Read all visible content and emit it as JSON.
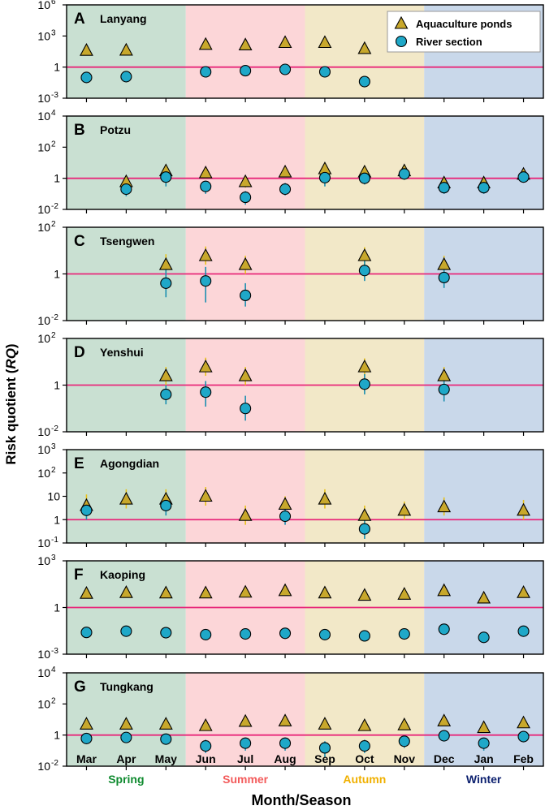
{
  "chart_data": {
    "type": "scatter",
    "y_axis_label_prefix": "Risk quotient (",
    "y_axis_label_italic": "RQ",
    "y_axis_label_suffix": ")",
    "x_axis_label": "Month/Season",
    "months": [
      "Mar",
      "Apr",
      "May",
      "Jun",
      "Jul",
      "Aug",
      "Sep",
      "Oct",
      "Nov",
      "Dec",
      "Jan",
      "Feb"
    ],
    "seasons": [
      {
        "name": "Spring",
        "color": "#0e8a2e",
        "band": "#c9e0d2"
      },
      {
        "name": "Summer",
        "color": "#f35b5b",
        "band": "#fcd6d8"
      },
      {
        "name": "Autumn",
        "color": "#f0b000",
        "band": "#f2e8c8"
      },
      {
        "name": "Winter",
        "color": "#0b1f6e",
        "band": "#c9d8ea"
      }
    ],
    "legend": [
      {
        "name": "Aquaculture ponds",
        "marker": "triangle",
        "color": "#c8a82c"
      },
      {
        "name": "River section",
        "marker": "circle",
        "color": "#1fa8c8"
      }
    ],
    "threshold": {
      "value": 1,
      "color": "#e8287a"
    },
    "panels": [
      {
        "letter": "A",
        "site": "Lanyang",
        "ylim_exp": [
          -3,
          6
        ],
        "ticks": [
          {
            "exp": -3,
            "label": "10",
            "sup": "-3"
          },
          {
            "exp": 0,
            "label": "1",
            "sup": ""
          },
          {
            "exp": 3,
            "label": "10",
            "sup": "3"
          },
          {
            "exp": 6,
            "label": "10",
            "sup": "6"
          }
        ],
        "ponds": [
          {
            "m": 0,
            "v": 40
          },
          {
            "m": 1,
            "v": 42
          },
          {
            "m": 3,
            "v": 150
          },
          {
            "m": 4,
            "v": 135
          },
          {
            "m": 5,
            "v": 230
          },
          {
            "m": 6,
            "v": 230
          },
          {
            "m": 7,
            "v": 60
          }
        ],
        "river": [
          {
            "m": 0,
            "v": 0.1
          },
          {
            "m": 1,
            "v": 0.12
          },
          {
            "m": 3,
            "v": 0.35
          },
          {
            "m": 4,
            "v": 0.45
          },
          {
            "m": 5,
            "v": 0.6
          },
          {
            "m": 6,
            "v": 0.35
          },
          {
            "m": 7,
            "v": 0.04
          }
        ]
      },
      {
        "letter": "B",
        "site": "Potzu",
        "ylim_exp": [
          -2,
          4
        ],
        "ticks": [
          {
            "exp": -2,
            "label": "10",
            "sup": "-2"
          },
          {
            "exp": 0,
            "label": "1",
            "sup": ""
          },
          {
            "exp": 2,
            "label": "10",
            "sup": "2"
          },
          {
            "exp": 4,
            "label": "10",
            "sup": "4"
          }
        ],
        "ponds": [
          {
            "m": 1,
            "v": 0.6,
            "lo": 0.3,
            "hi": 1.1
          },
          {
            "m": 2,
            "v": 3,
            "lo": 1.5,
            "hi": 7
          },
          {
            "m": 3,
            "v": 2.2,
            "lo": 1,
            "hi": 5
          },
          {
            "m": 4,
            "v": 0.6,
            "lo": 0.25,
            "hi": 1.3
          },
          {
            "m": 5,
            "v": 2.5,
            "lo": 1.2,
            "hi": 5
          },
          {
            "m": 6,
            "v": 4,
            "lo": 2,
            "hi": 10
          },
          {
            "m": 7,
            "v": 2.5,
            "lo": 1,
            "hi": 6
          },
          {
            "m": 8,
            "v": 3,
            "lo": 1.5,
            "hi": 7
          },
          {
            "m": 9,
            "v": 0.5,
            "lo": 0.3,
            "hi": 1
          },
          {
            "m": 10,
            "v": 0.5,
            "lo": 0.3,
            "hi": 0.9
          },
          {
            "m": 11,
            "v": 1.8,
            "lo": 1,
            "hi": 3
          }
        ],
        "river": [
          {
            "m": 1,
            "v": 0.2,
            "lo": 0.07,
            "hi": 0.5
          },
          {
            "m": 2,
            "v": 1.2,
            "lo": 0.3,
            "hi": 3
          },
          {
            "m": 3,
            "v": 0.3,
            "lo": 0.1,
            "hi": 0.7
          },
          {
            "m": 4,
            "v": 0.06,
            "lo": 0.02,
            "hi": 0.15
          },
          {
            "m": 5,
            "v": 0.2,
            "lo": 0.08,
            "hi": 0.5
          },
          {
            "m": 6,
            "v": 1.1,
            "lo": 0.3,
            "hi": 3
          },
          {
            "m": 7,
            "v": 1,
            "lo": 0.4,
            "hi": 2.5
          },
          {
            "m": 8,
            "v": 1.9,
            "lo": 0.8,
            "hi": 4
          },
          {
            "m": 9,
            "v": 0.25,
            "lo": 0.1,
            "hi": 0.5
          },
          {
            "m": 10,
            "v": 0.25,
            "lo": 0.1,
            "hi": 0.5
          },
          {
            "m": 11,
            "v": 1.2,
            "lo": 0.6,
            "hi": 2.5
          }
        ]
      },
      {
        "letter": "C",
        "site": "Tsengwen",
        "ylim_exp": [
          -2,
          2
        ],
        "ticks": [
          {
            "exp": -2,
            "label": "10",
            "sup": "-2"
          },
          {
            "exp": 0,
            "label": "1",
            "sup": ""
          },
          {
            "exp": 2,
            "label": "10",
            "sup": "2"
          }
        ],
        "ponds": [
          {
            "m": 2,
            "v": 2.5,
            "lo": 1,
            "hi": 7
          },
          {
            "m": 3,
            "v": 6,
            "lo": 2.5,
            "hi": 15
          },
          {
            "m": 4,
            "v": 2.5,
            "lo": 1,
            "hi": 6
          },
          {
            "m": 7,
            "v": 6,
            "lo": 2.5,
            "hi": 14
          },
          {
            "m": 9,
            "v": 2.5,
            "lo": 1,
            "hi": 6
          }
        ],
        "river": [
          {
            "m": 2,
            "v": 0.4,
            "lo": 0.1,
            "hi": 1.5
          },
          {
            "m": 3,
            "v": 0.5,
            "lo": 0.06,
            "hi": 2
          },
          {
            "m": 4,
            "v": 0.12,
            "lo": 0.04,
            "hi": 0.4
          },
          {
            "m": 7,
            "v": 1.4,
            "lo": 0.5,
            "hi": 4
          },
          {
            "m": 9,
            "v": 0.7,
            "lo": 0.25,
            "hi": 1.8
          }
        ]
      },
      {
        "letter": "D",
        "site": "Yenshui",
        "ylim_exp": [
          -2,
          2
        ],
        "ticks": [
          {
            "exp": -2,
            "label": "10",
            "sup": "-2"
          },
          {
            "exp": 0,
            "label": "1",
            "sup": ""
          },
          {
            "exp": 2,
            "label": "10",
            "sup": "2"
          }
        ],
        "ponds": [
          {
            "m": 2,
            "v": 2.5,
            "lo": 1,
            "hi": 6
          },
          {
            "m": 3,
            "v": 6,
            "lo": 2.5,
            "hi": 15
          },
          {
            "m": 4,
            "v": 2.5,
            "lo": 1,
            "hi": 6
          },
          {
            "m": 7,
            "v": 6,
            "lo": 2.5,
            "hi": 14
          },
          {
            "m": 9,
            "v": 2.5,
            "lo": 1,
            "hi": 6
          }
        ],
        "river": [
          {
            "m": 2,
            "v": 0.4,
            "lo": 0.15,
            "hi": 1
          },
          {
            "m": 3,
            "v": 0.5,
            "lo": 0.12,
            "hi": 1.5
          },
          {
            "m": 4,
            "v": 0.1,
            "lo": 0.03,
            "hi": 0.35
          },
          {
            "m": 7,
            "v": 1.1,
            "lo": 0.4,
            "hi": 3
          },
          {
            "m": 9,
            "v": 0.65,
            "lo": 0.2,
            "hi": 1.8
          }
        ]
      },
      {
        "letter": "E",
        "site": "Agongdian",
        "ylim_exp": [
          -1,
          3
        ],
        "ticks": [
          {
            "exp": -1,
            "label": "10",
            "sup": "-1"
          },
          {
            "exp": 0,
            "label": "1",
            "sup": ""
          },
          {
            "exp": 1,
            "label": "10",
            "sup": ""
          },
          {
            "exp": 2,
            "label": "10",
            "sup": "2"
          },
          {
            "exp": 3,
            "label": "10",
            "sup": "3"
          }
        ],
        "ponds": [
          {
            "m": 0,
            "v": 4,
            "lo": 1.5,
            "hi": 12
          },
          {
            "m": 1,
            "v": 7.5,
            "lo": 3,
            "hi": 20
          },
          {
            "m": 2,
            "v": 7.5,
            "lo": 3,
            "hi": 20
          },
          {
            "m": 3,
            "v": 10,
            "lo": 4,
            "hi": 25
          },
          {
            "m": 4,
            "v": 1.5,
            "lo": 0.6,
            "hi": 4
          },
          {
            "m": 5,
            "v": 4.5,
            "lo": 2,
            "hi": 10
          },
          {
            "m": 6,
            "v": 7.5,
            "lo": 3,
            "hi": 20
          },
          {
            "m": 7,
            "v": 1.5,
            "lo": 0.6,
            "hi": 4
          },
          {
            "m": 8,
            "v": 2.5,
            "lo": 1,
            "hi": 6
          },
          {
            "m": 9,
            "v": 3.5,
            "lo": 1.5,
            "hi": 9
          },
          {
            "m": 11,
            "v": 2.5,
            "lo": 1,
            "hi": 7
          }
        ],
        "river": [
          {
            "m": 0,
            "v": 2.5,
            "lo": 1,
            "hi": 6
          },
          {
            "m": 2,
            "v": 4,
            "lo": 1.5,
            "hi": 10
          },
          {
            "m": 5,
            "v": 1.4,
            "lo": 0.6,
            "hi": 3.5
          },
          {
            "m": 7,
            "v": 0.4,
            "lo": 0.15,
            "hi": 1
          }
        ]
      },
      {
        "letter": "F",
        "site": "Kaoping",
        "ylim_exp": [
          -3,
          3
        ],
        "ticks": [
          {
            "exp": -3,
            "label": "10",
            "sup": "-3"
          },
          {
            "exp": 0,
            "label": "1",
            "sup": ""
          },
          {
            "exp": 3,
            "label": "10",
            "sup": "3"
          }
        ],
        "ponds": [
          {
            "m": 0,
            "v": 8
          },
          {
            "m": 1,
            "v": 9
          },
          {
            "m": 2,
            "v": 8.5
          },
          {
            "m": 3,
            "v": 8.5
          },
          {
            "m": 4,
            "v": 9.5
          },
          {
            "m": 5,
            "v": 12
          },
          {
            "m": 6,
            "v": 8.5
          },
          {
            "m": 7,
            "v": 6
          },
          {
            "m": 8,
            "v": 7
          },
          {
            "m": 9,
            "v": 12
          },
          {
            "m": 10,
            "v": 4
          },
          {
            "m": 11,
            "v": 9
          }
        ],
        "river": [
          {
            "m": 0,
            "v": 0.025
          },
          {
            "m": 1,
            "v": 0.03
          },
          {
            "m": 2,
            "v": 0.024
          },
          {
            "m": 3,
            "v": 0.018
          },
          {
            "m": 4,
            "v": 0.02
          },
          {
            "m": 5,
            "v": 0.022
          },
          {
            "m": 6,
            "v": 0.018
          },
          {
            "m": 7,
            "v": 0.015
          },
          {
            "m": 8,
            "v": 0.02
          },
          {
            "m": 9,
            "v": 0.04
          },
          {
            "m": 10,
            "v": 0.012
          },
          {
            "m": 11,
            "v": 0.03
          }
        ]
      },
      {
        "letter": "G",
        "site": "Tungkang",
        "ylim_exp": [
          -2,
          4
        ],
        "ticks": [
          {
            "exp": -2,
            "label": "10",
            "sup": "-2"
          },
          {
            "exp": 0,
            "label": "1",
            "sup": ""
          },
          {
            "exp": 2,
            "label": "10",
            "sup": "2"
          },
          {
            "exp": 4,
            "label": "10",
            "sup": "4"
          }
        ],
        "ponds": [
          {
            "m": 0,
            "v": 5,
            "lo": 2.5,
            "hi": 9
          },
          {
            "m": 1,
            "v": 5,
            "lo": 2.5,
            "hi": 9
          },
          {
            "m": 2,
            "v": 5,
            "lo": 2.5,
            "hi": 9
          },
          {
            "m": 3,
            "v": 4,
            "lo": 2,
            "hi": 7
          },
          {
            "m": 4,
            "v": 7.5,
            "lo": 4,
            "hi": 14
          },
          {
            "m": 5,
            "v": 8,
            "lo": 4,
            "hi": 15
          },
          {
            "m": 6,
            "v": 5,
            "lo": 2.5,
            "hi": 9
          },
          {
            "m": 7,
            "v": 4,
            "lo": 2,
            "hi": 7
          },
          {
            "m": 8,
            "v": 4.5,
            "lo": 2.5,
            "hi": 8
          },
          {
            "m": 9,
            "v": 8,
            "lo": 4,
            "hi": 16
          },
          {
            "m": 10,
            "v": 3,
            "lo": 1.5,
            "hi": 6
          },
          {
            "m": 11,
            "v": 6,
            "lo": 3,
            "hi": 12
          }
        ],
        "river": [
          {
            "m": 0,
            "v": 0.6,
            "lo": 0.3,
            "hi": 1.2
          },
          {
            "m": 1,
            "v": 0.7,
            "lo": 0.35,
            "hi": 1.4
          },
          {
            "m": 2,
            "v": 0.55,
            "lo": 0.25,
            "hi": 1.2
          },
          {
            "m": 3,
            "v": 0.2,
            "lo": 0.07,
            "hi": 0.5
          },
          {
            "m": 4,
            "v": 0.3,
            "lo": 0.1,
            "hi": 0.7
          },
          {
            "m": 5,
            "v": 0.3,
            "lo": 0.1,
            "hi": 0.7
          },
          {
            "m": 6,
            "v": 0.15,
            "lo": 0.04,
            "hi": 0.4
          },
          {
            "m": 7,
            "v": 0.2,
            "lo": 0.07,
            "hi": 0.5
          },
          {
            "m": 8,
            "v": 0.4,
            "lo": 0.15,
            "hi": 0.9
          },
          {
            "m": 9,
            "v": 0.9,
            "lo": 0.4,
            "hi": 1.8
          },
          {
            "m": 10,
            "v": 0.3,
            "lo": 0.1,
            "hi": 0.6
          },
          {
            "m": 11,
            "v": 0.8,
            "lo": 0.35,
            "hi": 1.6
          }
        ]
      }
    ]
  }
}
